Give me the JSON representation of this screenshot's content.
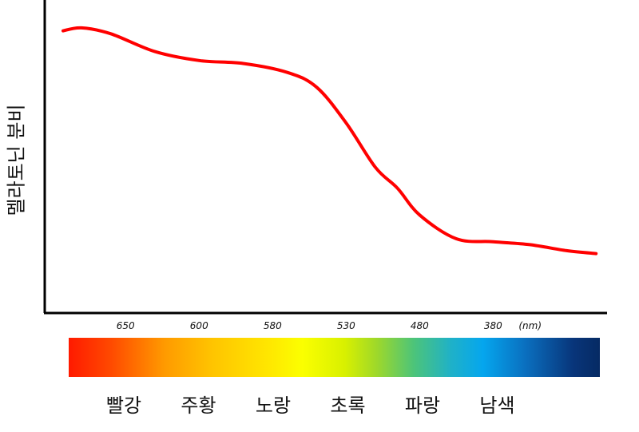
{
  "chart_data": {
    "type": "line",
    "title": "",
    "xlabel": "",
    "ylabel": "멜라토닌 분비",
    "x_unit": "(nm)",
    "x_ticks": [
      "650",
      "600",
      "580",
      "530",
      "480",
      "380"
    ],
    "x_tick_positions": [
      0,
      1,
      2,
      3,
      4,
      5
    ],
    "xlim": [
      -1.1,
      6.55
    ],
    "ylim": [
      0,
      1
    ],
    "series": [
      {
        "color": "#ff0000",
        "x": [
          -0.85,
          -0.6,
          -0.2,
          0.4,
          1.0,
          1.6,
          2.2,
          2.6,
          3.0,
          3.4,
          3.7,
          4.0,
          4.5,
          5.0,
          5.5,
          6.0,
          6.4
        ],
        "y": [
          0.95,
          0.96,
          0.94,
          0.88,
          0.85,
          0.84,
          0.81,
          0.76,
          0.64,
          0.49,
          0.42,
          0.33,
          0.25,
          0.24,
          0.23,
          0.21,
          0.2
        ]
      }
    ],
    "grid": false,
    "legend": "none"
  },
  "spectrum_bar": {
    "gradient": [
      "#ff1a00",
      "#ff9a00",
      "#ffe800",
      "#9ed82a",
      "#05a6ee",
      "#062a63"
    ],
    "labels": [
      "빨강",
      "주황",
      "노랑",
      "초록",
      "파랑",
      "남색"
    ]
  }
}
